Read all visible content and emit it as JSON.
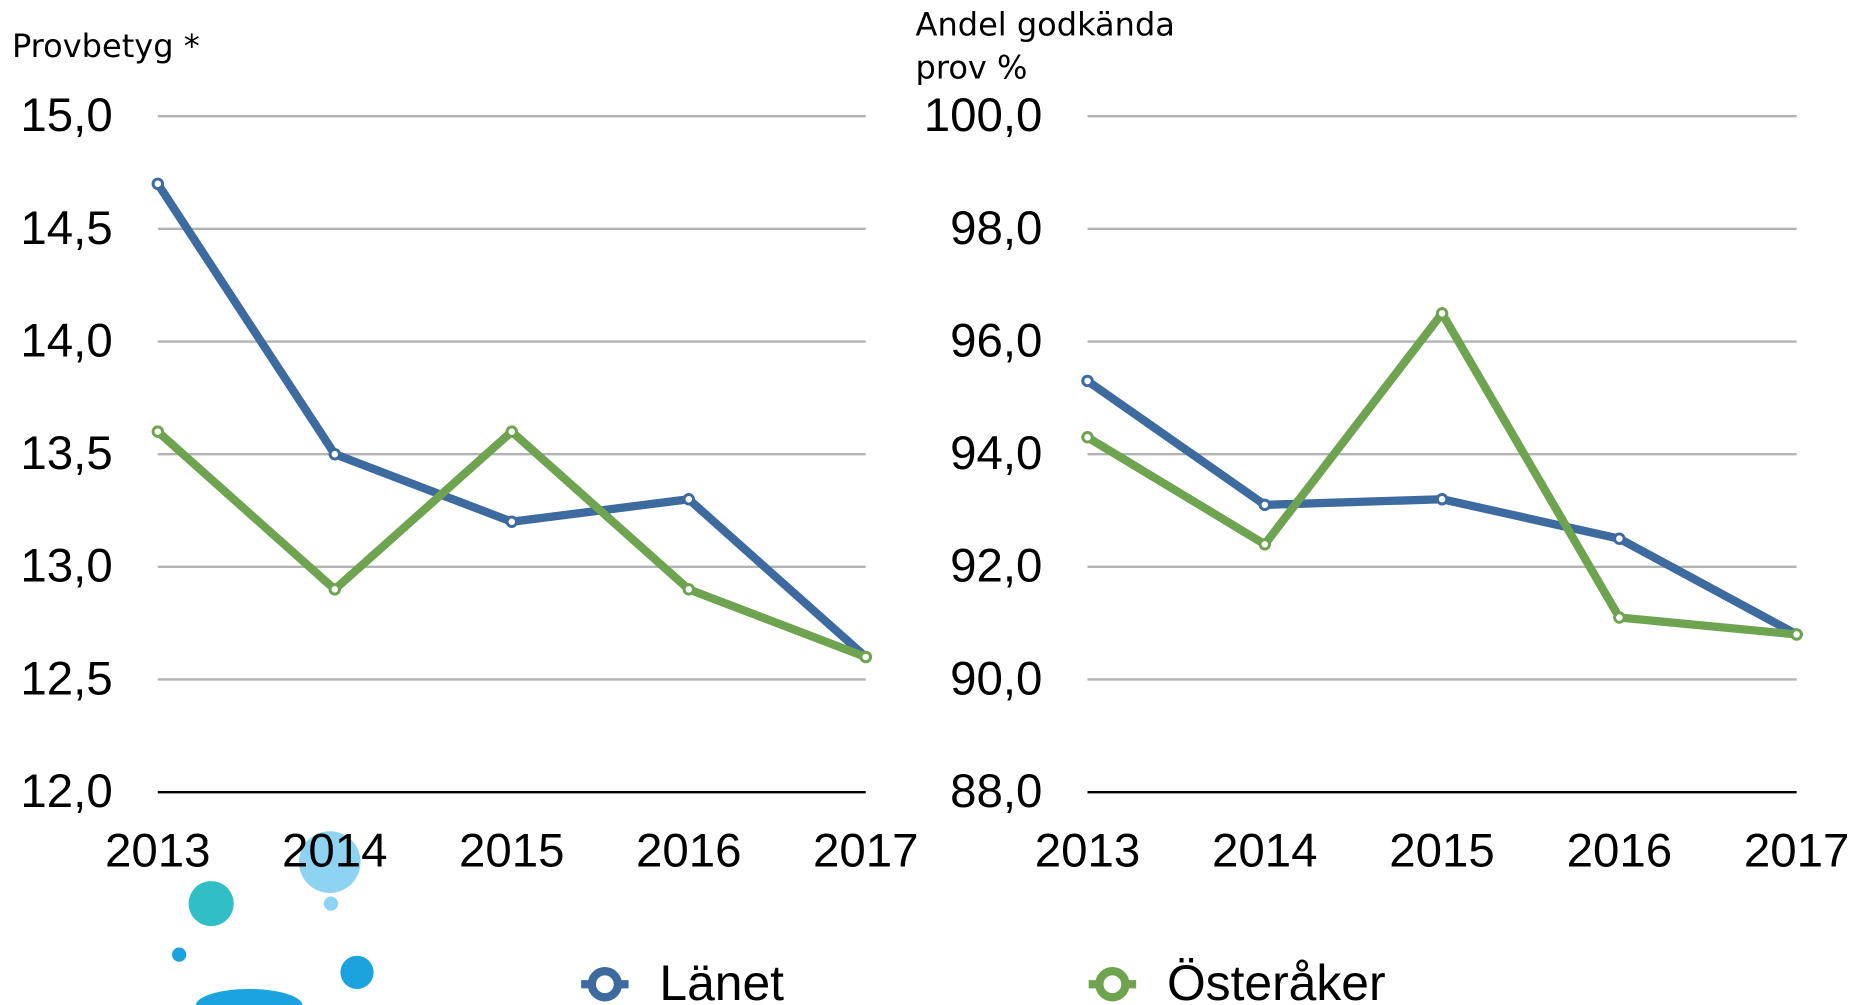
{
  "chart_data": [
    {
      "type": "line",
      "y_label": "Provbetyg *",
      "categories": [
        "2013",
        "2014",
        "2015",
        "2016",
        "2017"
      ],
      "series": [
        {
          "name": "Länet",
          "color": "#3d6b9f",
          "values": [
            14.7,
            13.5,
            13.2,
            13.3,
            12.6
          ]
        },
        {
          "name": "Österåker",
          "color": "#6ea34f",
          "values": [
            13.6,
            12.9,
            13.6,
            12.9,
            12.6
          ]
        }
      ],
      "ylim": [
        12,
        15
      ],
      "yticks": [
        {
          "value": 12,
          "label": "12,0"
        },
        {
          "value": 12.5,
          "label": "12,5"
        },
        {
          "value": 13,
          "label": "13,0"
        },
        {
          "value": 13.5,
          "label": "13,5"
        },
        {
          "value": 14,
          "label": "14,0"
        },
        {
          "value": 14.5,
          "label": "14,5"
        },
        {
          "value": 15,
          "label": "15,0"
        }
      ],
      "grid": true
    },
    {
      "type": "line",
      "y_label": "Andel godkända prov %",
      "categories": [
        "2013",
        "2014",
        "2015",
        "2016",
        "2017"
      ],
      "series": [
        {
          "name": "Länet",
          "color": "#3d6b9f",
          "values": [
            95.3,
            93.1,
            93.2,
            92.5,
            90.8
          ]
        },
        {
          "name": "Österåker",
          "color": "#6ea34f",
          "values": [
            94.3,
            92.4,
            96.5,
            91.1,
            90.8
          ]
        }
      ],
      "ylim": [
        88,
        100
      ],
      "yticks": [
        {
          "value": 88,
          "label": "88,0"
        },
        {
          "value": 90,
          "label": "90,0"
        },
        {
          "value": 92,
          "label": "92,0"
        },
        {
          "value": 94,
          "label": "94,0"
        },
        {
          "value": 96,
          "label": "96,0"
        },
        {
          "value": 98,
          "label": "98,0"
        },
        {
          "value": 100,
          "label": "100,0"
        }
      ],
      "grid": true
    }
  ]
}
